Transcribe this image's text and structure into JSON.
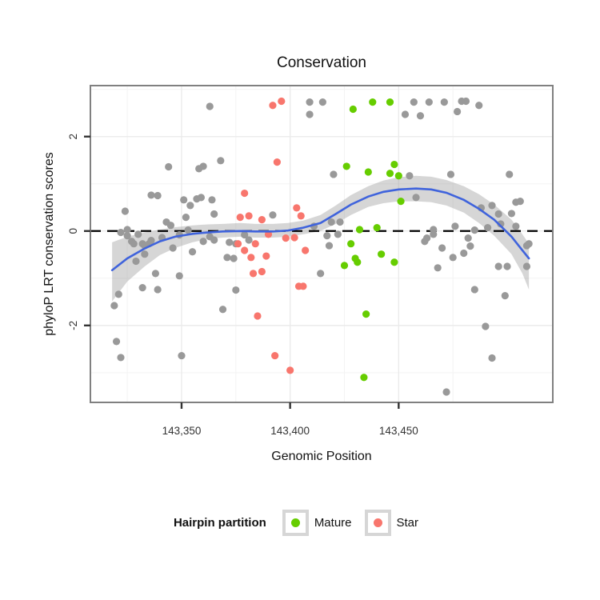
{
  "chart_data": {
    "type": "scatter",
    "title": "Conservation",
    "xlabel": "Genomic Position",
    "ylabel": "phyloP LRT conservation scores",
    "xlim": [
      143308,
      143521
    ],
    "ylim": [
      -3.63,
      3.08
    ],
    "x_ticks": {
      "values": [
        143350,
        143400,
        143450
      ],
      "labels": [
        "143,350",
        "143,400",
        "143,450"
      ]
    },
    "x_minor_ticks": [
      143325,
      143375,
      143425,
      143475
    ],
    "y_ticks": {
      "values": [
        -2,
        0,
        2
      ],
      "labels": [
        "-2",
        "0",
        "2"
      ]
    },
    "y_minor_ticks": [
      -3,
      -1,
      1,
      3
    ],
    "grid": {
      "major_color": "#eaeaea",
      "minor_color": "#f3f3f3",
      "shown": true
    },
    "panel": {
      "border_color": "#808080",
      "background": "#ffffff"
    },
    "axis": {
      "tick_color": "#333333",
      "label_color": "#333333"
    },
    "reference_line": {
      "y": 0,
      "style": "dashed",
      "color": "#000000"
    },
    "legend": {
      "title": "Hairpin partition",
      "position": "bottom",
      "items": [
        {
          "label": "Mature",
          "color": "#66CD00"
        },
        {
          "label": "Star",
          "color": "#F8766D"
        }
      ]
    },
    "series": [
      {
        "name": "other",
        "color": "#999999",
        "points": [
          [
            143363,
            2.64
          ],
          [
            143344,
            1.36
          ],
          [
            143358,
            1.32
          ],
          [
            143360,
            1.37
          ],
          [
            143368,
            1.49
          ],
          [
            143336,
            0.76
          ],
          [
            143339,
            0.75
          ],
          [
            143324,
            0.42
          ],
          [
            143351,
            0.66
          ],
          [
            143354,
            0.54
          ],
          [
            143357,
            0.68
          ],
          [
            143359,
            0.71
          ],
          [
            143364,
            0.66
          ],
          [
            143365,
            0.36
          ],
          [
            143343,
            0.19
          ],
          [
            143345,
            0.12
          ],
          [
            143353,
            0.02
          ],
          [
            143352,
            0.29
          ],
          [
            143392,
            0.34
          ],
          [
            143325,
            -0.1
          ],
          [
            143327,
            -0.22
          ],
          [
            143328,
            -0.27
          ],
          [
            143330,
            -0.07
          ],
          [
            143332,
            -0.27
          ],
          [
            143333,
            -0.31
          ],
          [
            143335,
            -0.27
          ],
          [
            143341,
            -0.14
          ],
          [
            143346,
            -0.36
          ],
          [
            143355,
            -0.44
          ],
          [
            143365,
            -0.19
          ],
          [
            143372,
            -0.24
          ],
          [
            143375,
            -0.27
          ],
          [
            143322,
            -0.03
          ],
          [
            143325,
            0.03
          ],
          [
            143336,
            -0.2
          ],
          [
            143349,
            -0.08
          ],
          [
            143360,
            -0.22
          ],
          [
            143363,
            -0.12
          ],
          [
            143379,
            -0.08
          ],
          [
            143381,
            -0.19
          ],
          [
            143329,
            -0.64
          ],
          [
            143333,
            -0.49
          ],
          [
            143371,
            -0.56
          ],
          [
            143374,
            -0.58
          ],
          [
            143338,
            -0.9
          ],
          [
            143349,
            -0.95
          ],
          [
            143332,
            -1.2
          ],
          [
            143339,
            -1.24
          ],
          [
            143321,
            -1.34
          ],
          [
            143319,
            -1.58
          ],
          [
            143375,
            -1.25
          ],
          [
            143369,
            -1.66
          ],
          [
            143320,
            -2.34
          ],
          [
            143322,
            -2.68
          ],
          [
            143350,
            -2.64
          ],
          [
            143409,
            2.73
          ],
          [
            143415,
            2.73
          ],
          [
            143409,
            2.47
          ],
          [
            143420,
            1.2
          ],
          [
            143411,
            0.1
          ],
          [
            143419,
            0.19
          ],
          [
            143423,
            0.19
          ],
          [
            143417,
            -0.1
          ],
          [
            143422,
            -0.07
          ],
          [
            143418,
            -0.31
          ],
          [
            143414,
            -0.9
          ],
          [
            143457,
            2.73
          ],
          [
            143464,
            2.73
          ],
          [
            143471,
            2.73
          ],
          [
            143479,
            2.75
          ],
          [
            143481,
            2.75
          ],
          [
            143487,
            2.66
          ],
          [
            143453,
            2.47
          ],
          [
            143460,
            2.44
          ],
          [
            143477,
            2.53
          ],
          [
            143455,
            1.17
          ],
          [
            143474,
            1.2
          ],
          [
            143501,
            1.2
          ],
          [
            143458,
            0.71
          ],
          [
            143488,
            0.49
          ],
          [
            143493,
            0.54
          ],
          [
            143496,
            0.36
          ],
          [
            143502,
            0.37
          ],
          [
            143504,
            0.61
          ],
          [
            143506,
            0.63
          ],
          [
            143466,
            0.03
          ],
          [
            143476,
            0.1
          ],
          [
            143485,
            0.02
          ],
          [
            143491,
            0.07
          ],
          [
            143497,
            0.15
          ],
          [
            143504,
            0.1
          ],
          [
            143463,
            -0.15
          ],
          [
            143482,
            -0.15
          ],
          [
            143462,
            -0.22
          ],
          [
            143466,
            -0.07
          ],
          [
            143470,
            -0.36
          ],
          [
            143475,
            -0.56
          ],
          [
            143480,
            -0.47
          ],
          [
            143483,
            -0.32
          ],
          [
            143468,
            -0.78
          ],
          [
            143496,
            -0.75
          ],
          [
            143500,
            -0.75
          ],
          [
            143509,
            -0.75
          ],
          [
            143509,
            -0.31
          ],
          [
            143510,
            -0.27
          ],
          [
            143485,
            -1.24
          ],
          [
            143499,
            -1.37
          ],
          [
            143490,
            -2.02
          ],
          [
            143493,
            -2.69
          ],
          [
            143472,
            -3.41
          ]
        ]
      },
      {
        "name": "Star",
        "color": "#F8766D",
        "points": [
          [
            143392,
            2.66
          ],
          [
            143396,
            2.75
          ],
          [
            143394,
            1.46
          ],
          [
            143379,
            0.8
          ],
          [
            143377,
            0.29
          ],
          [
            143381,
            0.32
          ],
          [
            143387,
            0.24
          ],
          [
            143403,
            0.49
          ],
          [
            143405,
            0.32
          ],
          [
            143376,
            -0.27
          ],
          [
            143384,
            -0.27
          ],
          [
            143390,
            -0.07
          ],
          [
            143398,
            -0.15
          ],
          [
            143402,
            -0.14
          ],
          [
            143407,
            -0.41
          ],
          [
            143389,
            -0.53
          ],
          [
            143382,
            -0.56
          ],
          [
            143379,
            -0.41
          ],
          [
            143383,
            -0.9
          ],
          [
            143387,
            -0.86
          ],
          [
            143404,
            -1.17
          ],
          [
            143406,
            -1.17
          ],
          [
            143385,
            -1.8
          ],
          [
            143393,
            -2.64
          ],
          [
            143400,
            -2.95
          ]
        ]
      },
      {
        "name": "Mature",
        "color": "#66CD00",
        "points": [
          [
            143429,
            2.58
          ],
          [
            143438,
            2.73
          ],
          [
            143446,
            2.73
          ],
          [
            143426,
            1.37
          ],
          [
            143436,
            1.25
          ],
          [
            143446,
            1.22
          ],
          [
            143448,
            1.41
          ],
          [
            143450,
            1.17
          ],
          [
            143451,
            0.63
          ],
          [
            143432,
            0.03
          ],
          [
            143440,
            0.07
          ],
          [
            143428,
            -0.27
          ],
          [
            143425,
            -0.73
          ],
          [
            143430,
            -0.58
          ],
          [
            143431,
            -0.66
          ],
          [
            143442,
            -0.49
          ],
          [
            143448,
            -0.66
          ],
          [
            143435,
            -1.76
          ],
          [
            143434,
            -3.1
          ]
        ]
      }
    ],
    "smooth": {
      "color": "#3F63DC",
      "band_color": "#999999",
      "band_opacity": 0.4,
      "x": [
        143318,
        143325,
        143333,
        143340,
        143347,
        143355,
        143362,
        143369,
        143377,
        143384,
        143392,
        143399,
        143406,
        143414,
        143421,
        143428,
        143436,
        143443,
        143450,
        143458,
        143465,
        143472,
        143480,
        143487,
        143494,
        143502,
        143507,
        143510
      ],
      "y": [
        -0.83,
        -0.58,
        -0.37,
        -0.22,
        -0.12,
        -0.06,
        -0.03,
        -0.01,
        0.0,
        -0.01,
        -0.01,
        0.01,
        0.07,
        0.17,
        0.36,
        0.56,
        0.73,
        0.83,
        0.88,
        0.9,
        0.88,
        0.81,
        0.66,
        0.47,
        0.24,
        -0.12,
        -0.41,
        -0.58
      ],
      "band_upper": [
        -0.24,
        -0.12,
        -0.03,
        0.03,
        0.08,
        0.12,
        0.14,
        0.15,
        0.17,
        0.15,
        0.15,
        0.17,
        0.22,
        0.34,
        0.54,
        0.76,
        0.95,
        1.07,
        1.14,
        1.17,
        1.15,
        1.08,
        0.95,
        0.78,
        0.56,
        0.24,
        -0.07,
        -0.27
      ],
      "band_lower": [
        -1.49,
        -1.07,
        -0.75,
        -0.51,
        -0.36,
        -0.24,
        -0.17,
        -0.14,
        -0.12,
        -0.14,
        -0.14,
        -0.12,
        -0.07,
        0.0,
        0.15,
        0.34,
        0.51,
        0.59,
        0.63,
        0.63,
        0.61,
        0.54,
        0.39,
        0.17,
        -0.1,
        -0.49,
        -0.9,
        -1.24
      ]
    }
  }
}
